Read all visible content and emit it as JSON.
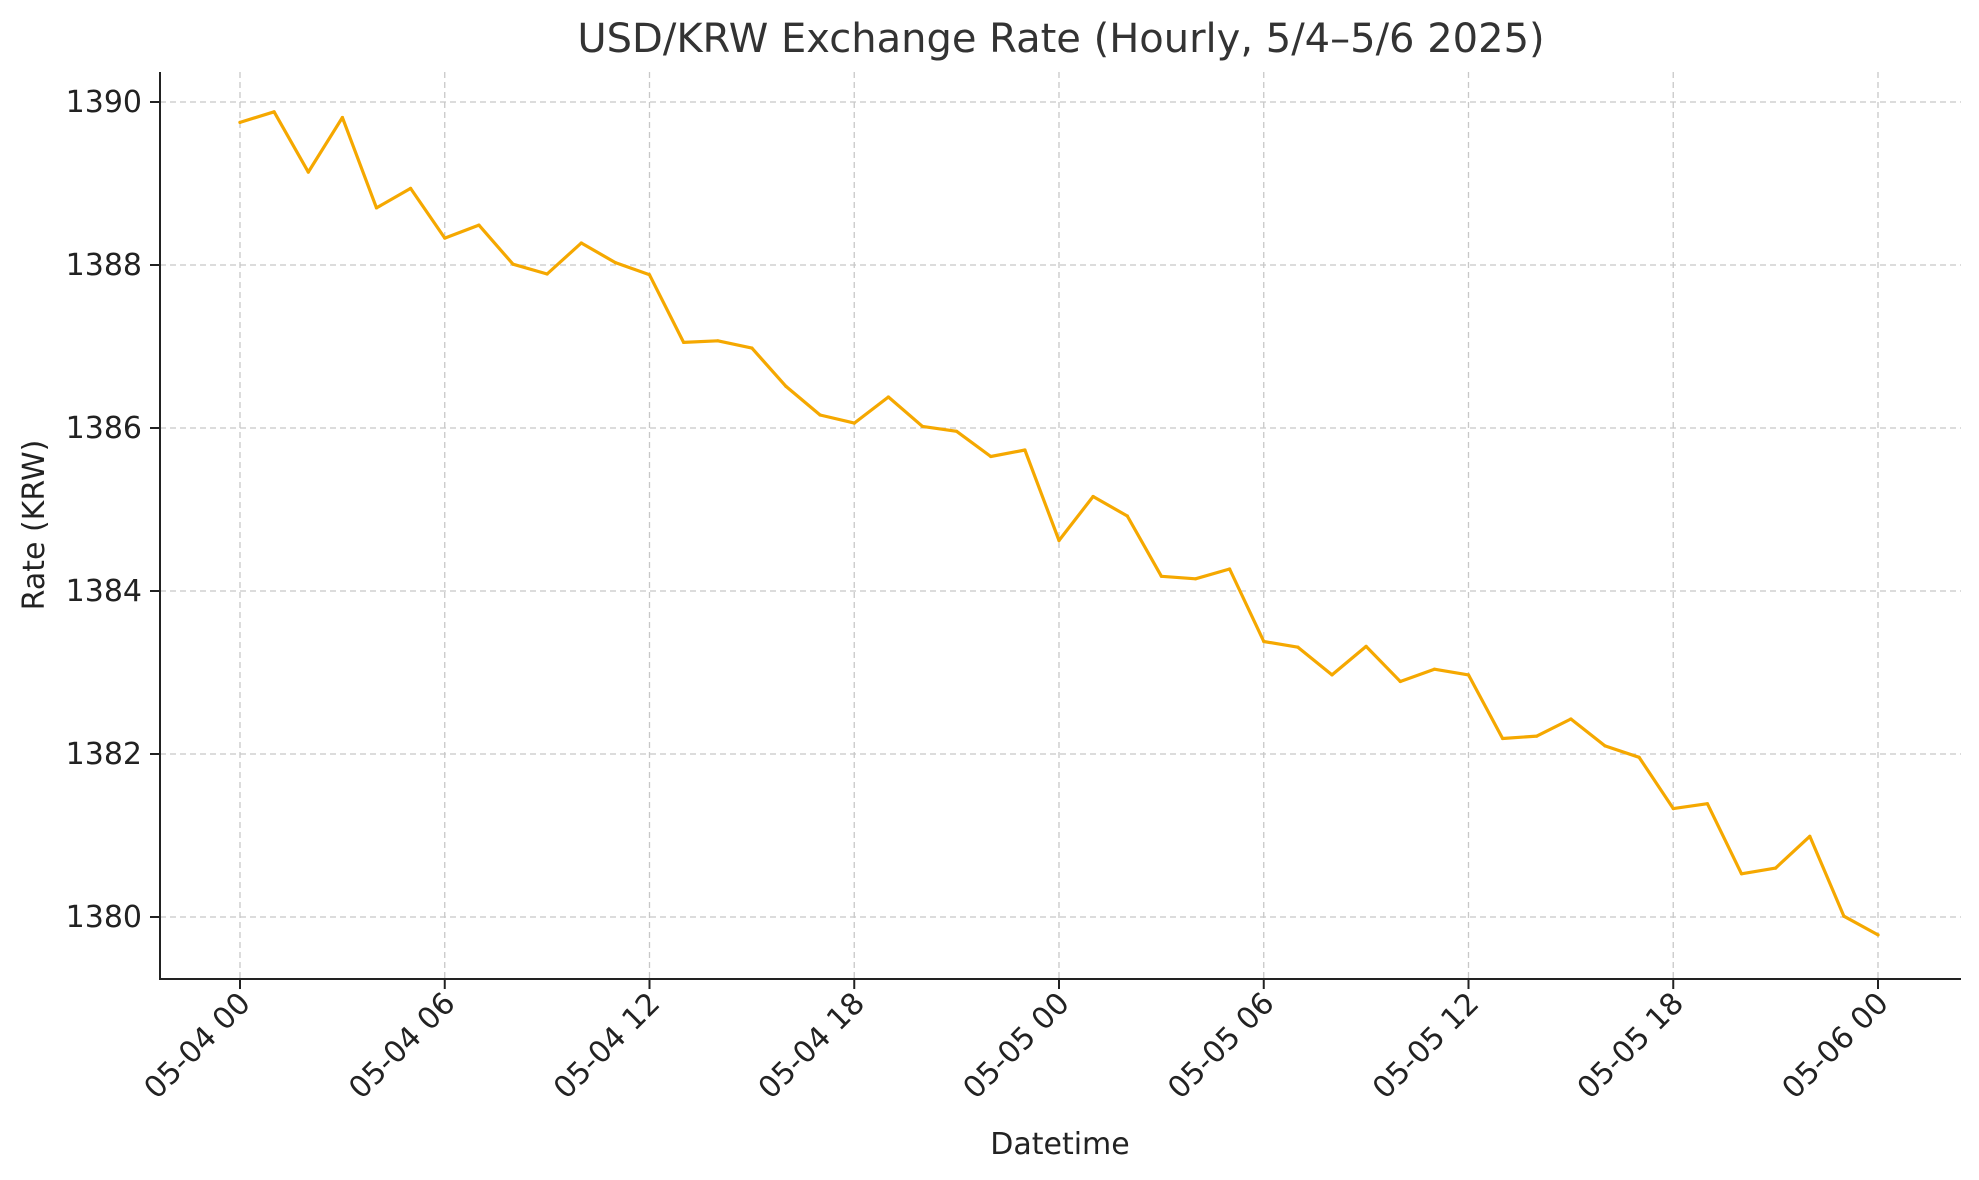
{
  "chart_data": {
    "type": "line",
    "title": "USD/KRW Exchange Rate (Hourly, 5/4–5/6 2025)",
    "xlabel": "Datetime",
    "ylabel": "Rate (KRW)",
    "x_start": "2025-05-04 00:00",
    "x_step": "1 hour",
    "xlim": [
      0,
      48
    ],
    "ylim": [
      1379.6,
      1390.4
    ],
    "grid": true,
    "line_color": "#F5A800",
    "x_ticks": [
      {
        "hour": 0,
        "label": "05-04 00"
      },
      {
        "hour": 6,
        "label": "05-04 06"
      },
      {
        "hour": 12,
        "label": "05-04 12"
      },
      {
        "hour": 18,
        "label": "05-04 18"
      },
      {
        "hour": 24,
        "label": "05-05 00"
      },
      {
        "hour": 30,
        "label": "05-05 06"
      },
      {
        "hour": 36,
        "label": "05-05 12"
      },
      {
        "hour": 42,
        "label": "05-05 18"
      },
      {
        "hour": 48,
        "label": "05-06 00"
      }
    ],
    "y_ticks": [
      1380,
      1382,
      1384,
      1386,
      1388,
      1390
    ],
    "series": [
      {
        "values": [
          1389.75,
          1389.88,
          1389.14,
          1389.81,
          1388.7,
          1388.94,
          1388.33,
          1388.49,
          1388.01,
          1387.89,
          1388.27,
          1388.03,
          1387.88,
          1387.05,
          1387.07,
          1386.98,
          1386.51,
          1386.16,
          1386.06,
          1386.38,
          1386.02,
          1385.96,
          1385.65,
          1385.73,
          1384.62,
          1385.16,
          1384.92,
          1384.18,
          1384.15,
          1384.27,
          1383.38,
          1383.31,
          1382.97,
          1383.32,
          1382.89,
          1383.04,
          1382.97,
          1382.19,
          1382.22,
          1382.43,
          1382.1,
          1381.96,
          1381.33,
          1381.39,
          1380.53,
          1380.6,
          1380.99,
          1380.01,
          1379.78
        ]
      }
    ]
  }
}
